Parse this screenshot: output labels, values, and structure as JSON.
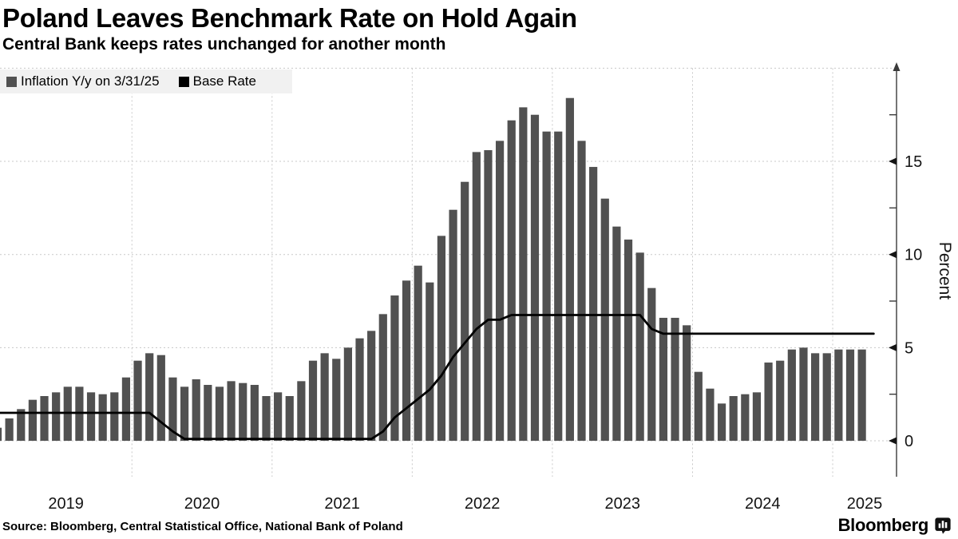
{
  "header": {
    "title": "Poland Leaves Benchmark Rate on Hold Again",
    "subtitle": "Central Bank keeps rates unchanged for another month"
  },
  "legend": {
    "items": [
      {
        "label": "Inflation Y/y on 3/31/25",
        "color": "#515151"
      },
      {
        "label": "Base Rate",
        "color": "#000000"
      }
    ]
  },
  "footer": {
    "source": "Source: Bloomberg, Central Statistical Office, National Bank of Poland",
    "brand": "Bloomberg"
  },
  "chart_data": {
    "type": "bar+line",
    "start_month": "2019-01",
    "grid_color": "#c8c8c8",
    "x_axis": {
      "year_labels": [
        "2019",
        "2020",
        "2021",
        "2022",
        "2023",
        "2024",
        "2025"
      ]
    },
    "y_axis": {
      "label": "Percent",
      "ticks": [
        0,
        5,
        10,
        15
      ],
      "minor_ticks": [
        2.5,
        7.5,
        12.5,
        17.5
      ],
      "grid_values": [
        0,
        5,
        10,
        15,
        20
      ],
      "range": [
        -1.8,
        20
      ]
    },
    "series": [
      {
        "name": "Inflation Y/y on 3/31/25",
        "type": "bar",
        "color": "#515151",
        "values": [
          0.7,
          1.2,
          1.7,
          2.2,
          2.4,
          2.6,
          2.9,
          2.9,
          2.6,
          2.5,
          2.6,
          3.4,
          4.3,
          4.7,
          4.6,
          3.4,
          2.9,
          3.3,
          3.0,
          2.9,
          3.2,
          3.1,
          3.0,
          2.4,
          2.6,
          2.4,
          3.2,
          4.3,
          4.7,
          4.4,
          5.0,
          5.5,
          5.9,
          6.8,
          7.8,
          8.6,
          9.4,
          8.5,
          11.0,
          12.4,
          13.9,
          15.5,
          15.6,
          16.1,
          17.2,
          17.9,
          17.5,
          16.6,
          16.6,
          18.4,
          16.1,
          14.7,
          13.0,
          11.5,
          10.8,
          10.1,
          8.2,
          6.6,
          6.6,
          6.2,
          3.7,
          2.8,
          2.0,
          2.4,
          2.5,
          2.6,
          4.2,
          4.3,
          4.9,
          5.0,
          4.7,
          4.7,
          4.9,
          4.9,
          4.9
        ]
      },
      {
        "name": "Base Rate",
        "type": "line",
        "color": "#000000",
        "values": [
          1.5,
          1.5,
          1.5,
          1.5,
          1.5,
          1.5,
          1.5,
          1.5,
          1.5,
          1.5,
          1.5,
          1.5,
          1.5,
          1.5,
          1.0,
          0.5,
          0.1,
          0.1,
          0.1,
          0.1,
          0.1,
          0.1,
          0.1,
          0.1,
          0.1,
          0.1,
          0.1,
          0.1,
          0.1,
          0.1,
          0.1,
          0.1,
          0.1,
          0.5,
          1.25,
          1.75,
          2.25,
          2.75,
          3.5,
          4.5,
          5.25,
          6.0,
          6.5,
          6.5,
          6.75,
          6.75,
          6.75,
          6.75,
          6.75,
          6.75,
          6.75,
          6.75,
          6.75,
          6.75,
          6.75,
          6.75,
          6.0,
          5.75,
          5.75,
          5.75,
          5.75,
          5.75,
          5.75,
          5.75,
          5.75,
          5.75,
          5.75,
          5.75,
          5.75,
          5.75,
          5.75,
          5.75,
          5.75,
          5.75,
          5.75,
          5.75
        ]
      }
    ]
  }
}
